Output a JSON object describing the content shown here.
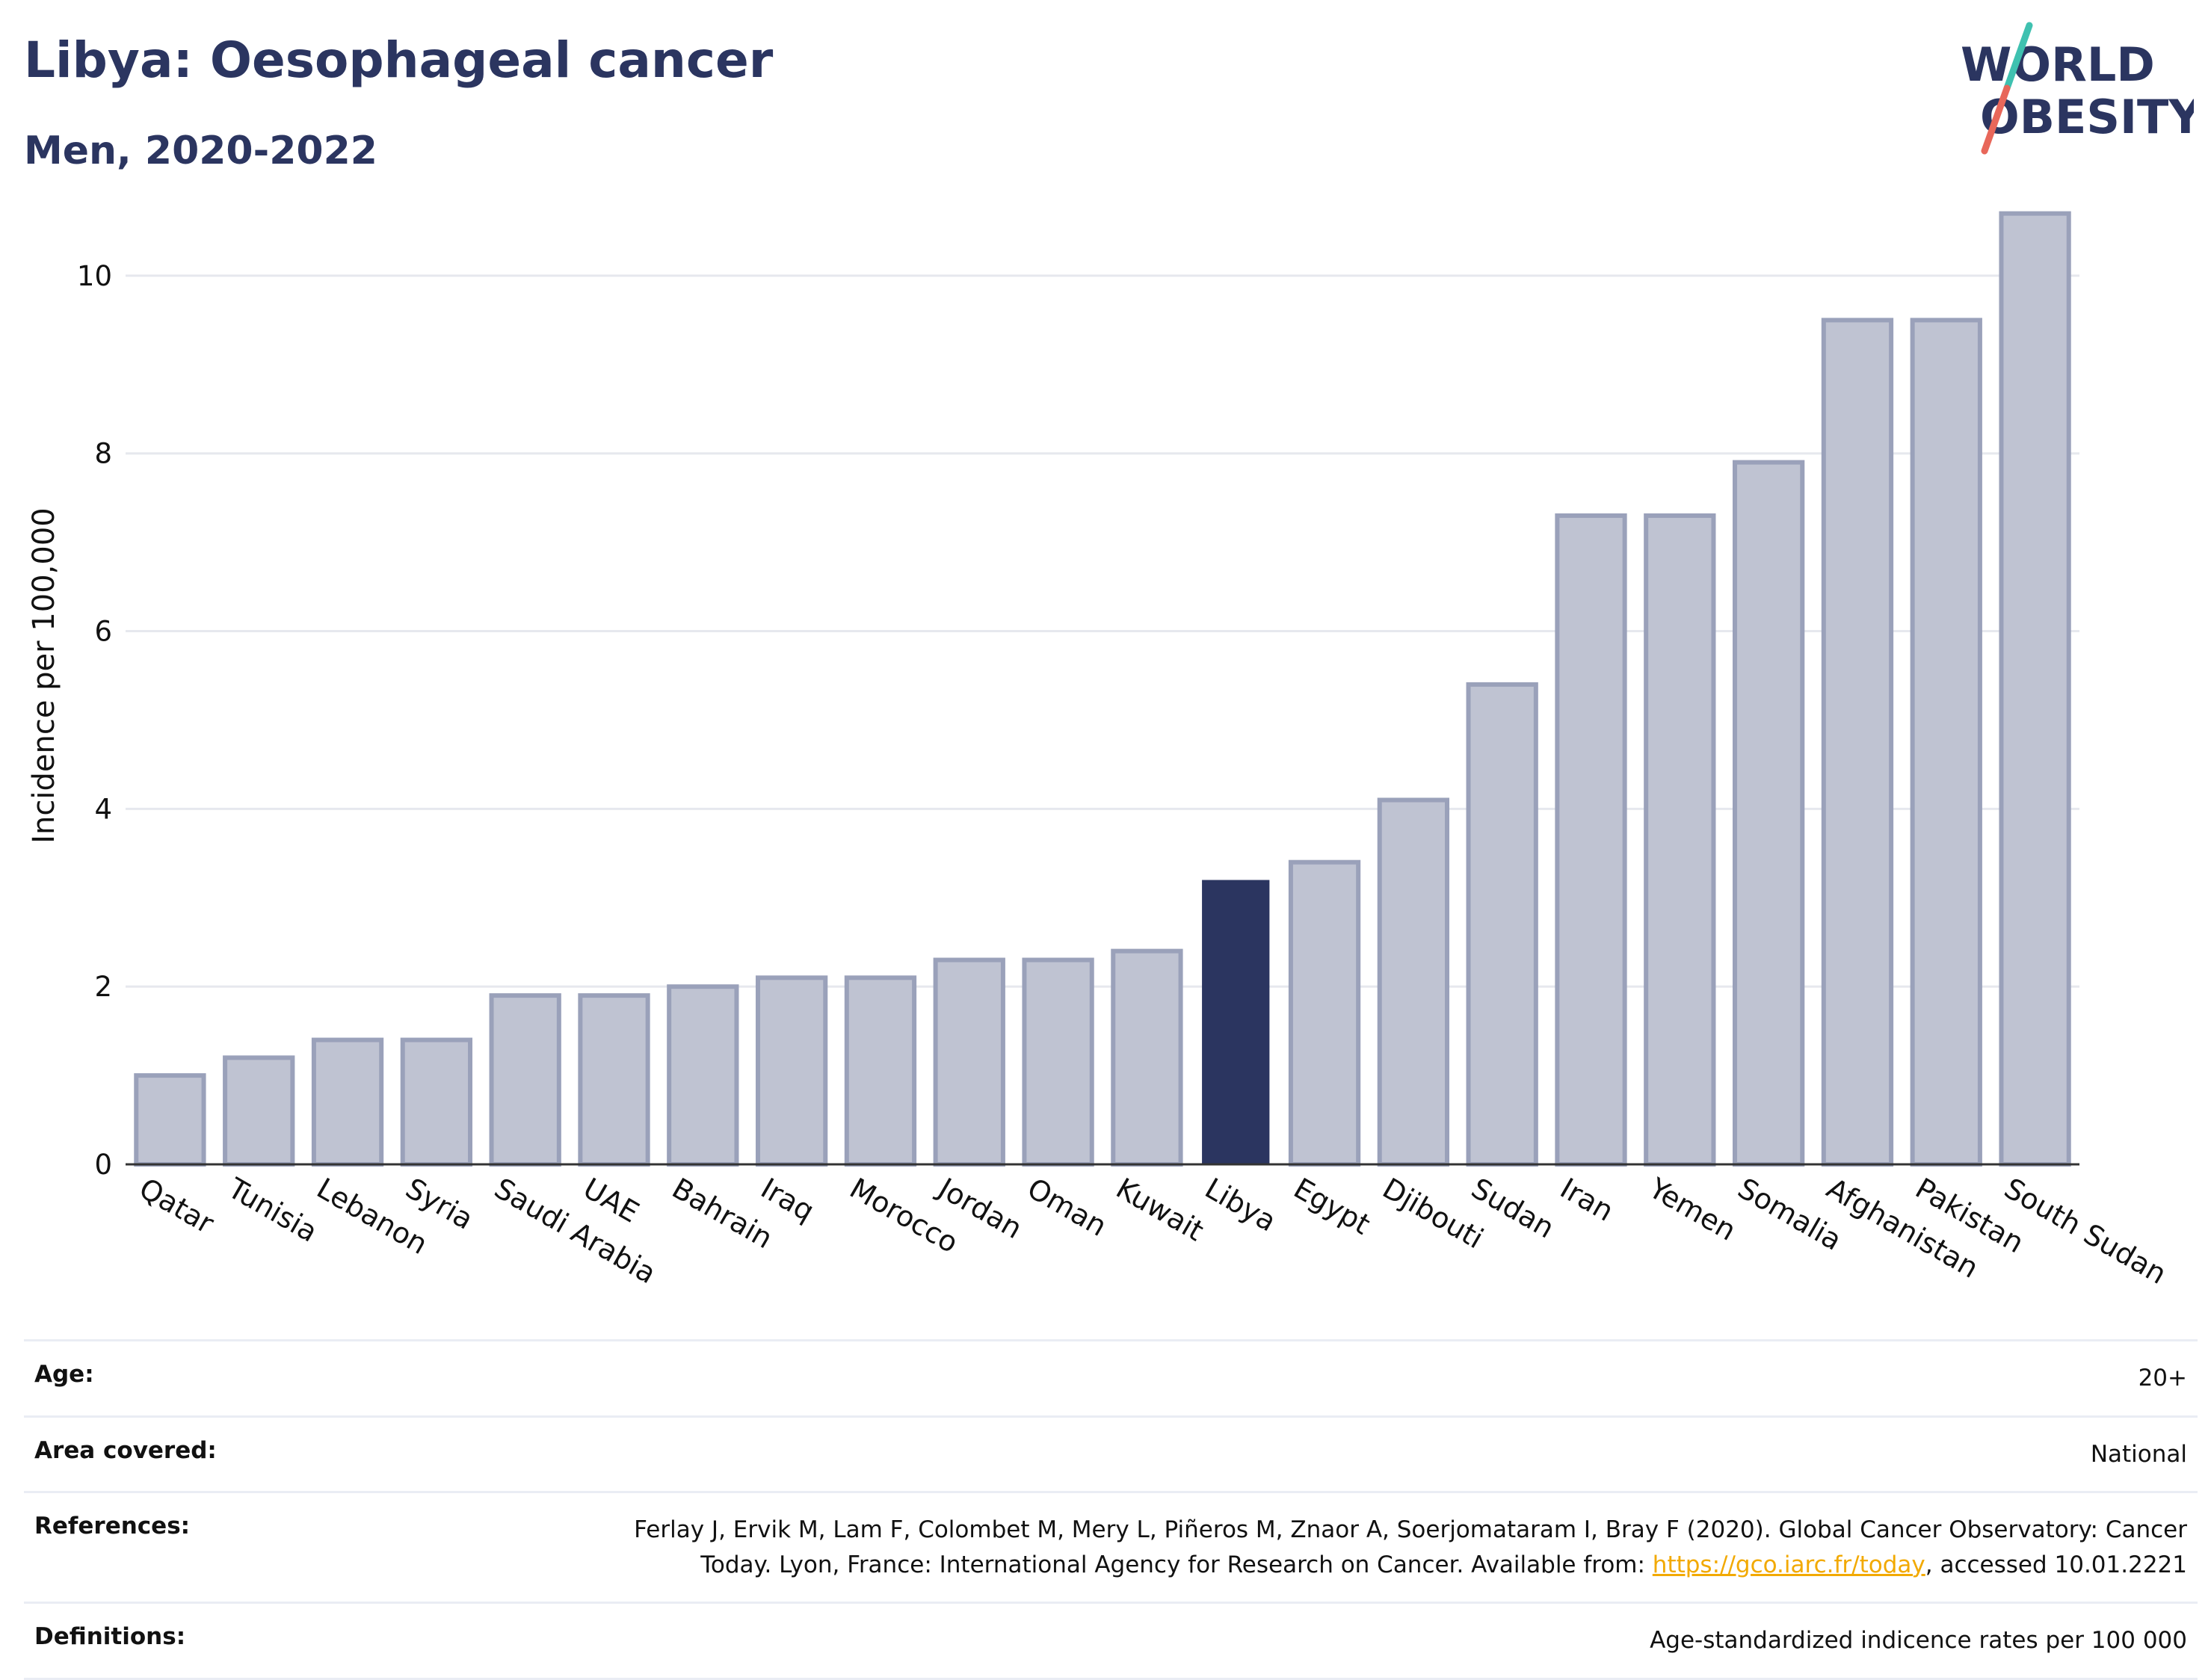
{
  "header": {
    "title": "Libya: Oesophageal cancer",
    "subtitle": "Men, 2020-2022"
  },
  "logo": {
    "line1": "WORLD",
    "line2": "OBESITY",
    "colors": {
      "text": "#2b3560",
      "slash_top": "#3fc1b0",
      "slash_bottom": "#e8675a"
    }
  },
  "chart_data": {
    "type": "bar",
    "ylabel": "Incidence per 100,000",
    "xlabel": "",
    "ylim": [
      0,
      11
    ],
    "yticks": [
      0,
      2,
      4,
      6,
      8,
      10
    ],
    "grid": true,
    "highlight": "Libya",
    "colors": {
      "bar": "#bfc3d2",
      "bar_edge": "#9aa1ba",
      "highlight": "#2b3560",
      "grid": "#e6e8ee"
    },
    "categories": [
      "Qatar",
      "Tunisia",
      "Lebanon",
      "Syria",
      "Saudi Arabia",
      "UAE",
      "Bahrain",
      "Iraq",
      "Morocco",
      "Jordan",
      "Oman",
      "Kuwait",
      "Libya",
      "Egypt",
      "Djibouti",
      "Sudan",
      "Iran",
      "Yemen",
      "Somalia",
      "Afghanistan",
      "Pakistan",
      "South Sudan"
    ],
    "values": [
      1.0,
      1.2,
      1.4,
      1.4,
      1.9,
      1.9,
      2.0,
      2.1,
      2.1,
      2.3,
      2.3,
      2.4,
      3.2,
      3.4,
      4.1,
      5.4,
      7.3,
      7.3,
      7.9,
      9.5,
      9.5,
      10.7
    ]
  },
  "info": {
    "rows": [
      {
        "label": "Age:",
        "value": "20+"
      },
      {
        "label": "Area covered:",
        "value": "National"
      },
      {
        "label": "References:",
        "value_line1": "Ferlay J, Ervik M, Lam F, Colombet M, Mery L, Piñeros M, Znaor A, Soerjomataram I, Bray F (2020). Global Cancer Observatory: Cancer",
        "value_line2_pre": "Today. Lyon, France: International Agency for Research on Cancer. Available from: ",
        "link": "https://gco.iarc.fr/today",
        "value_line2_post": ", accessed 10.01.2221"
      },
      {
        "label": "Definitions:",
        "value": "Age-standardized indicence rates per 100 000"
      }
    ]
  }
}
